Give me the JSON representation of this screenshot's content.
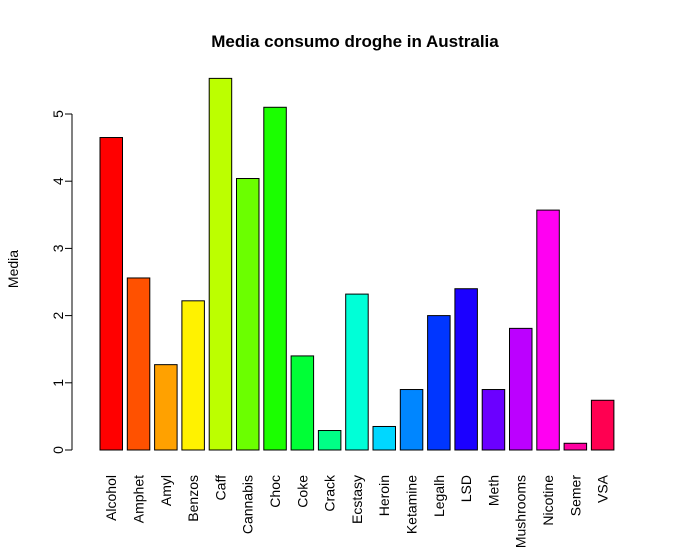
{
  "chart_data": {
    "type": "bar",
    "title": "Media consumo droghe in Australia",
    "xlabel": "",
    "ylabel": "Media",
    "ylim": [
      0,
      5.6
    ],
    "yticks": [
      0,
      1,
      2,
      3,
      4,
      5
    ],
    "grid": false,
    "categories": [
      "Alcohol",
      "Amphet",
      "Amyl",
      "Benzos",
      "Caff",
      "Cannabis",
      "Choc",
      "Coke",
      "Crack",
      "Ecstasy",
      "Heroin",
      "Ketamine",
      "Legalh",
      "LSD",
      "Meth",
      "Mushrooms",
      "Nicotine",
      "Semer",
      "VSA"
    ],
    "values": [
      4.65,
      2.56,
      1.27,
      2.22,
      5.53,
      4.04,
      5.1,
      1.4,
      0.29,
      2.32,
      0.35,
      0.9,
      2.0,
      2.4,
      0.9,
      1.81,
      3.57,
      0.1,
      0.74
    ],
    "colors": [
      "#FF0000",
      "#FF5100",
      "#FFA100",
      "#FFF200",
      "#BCFF00",
      "#6BFF00",
      "#1BFF00",
      "#00FF36",
      "#00FF86",
      "#00FFD7",
      "#00D7FF",
      "#0086FF",
      "#0036FF",
      "#1B00FF",
      "#6B00FF",
      "#BC00FF",
      "#FF00F2",
      "#FF00A1",
      "#FF0051"
    ]
  }
}
